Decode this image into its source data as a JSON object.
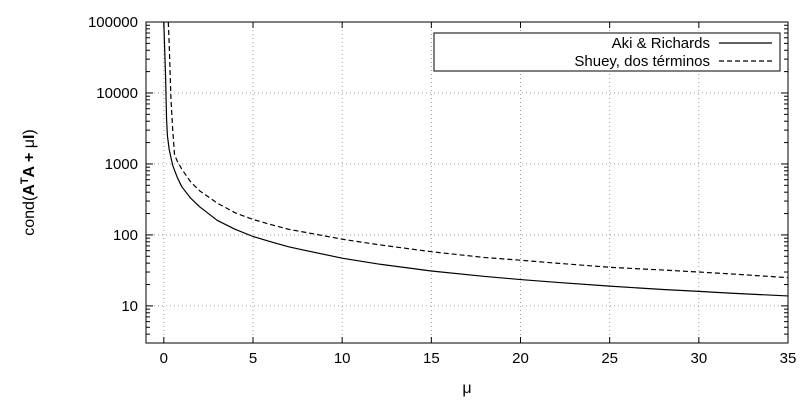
{
  "chart_data": {
    "type": "line",
    "title": "",
    "xlabel": "μ",
    "ylabel": {
      "prefix": "cond(",
      "a1": "A",
      "sup": "T",
      "a2": "A + ",
      "mu": "μ",
      "i": "I",
      "suffix": ")"
    },
    "xlim": [
      -1,
      35
    ],
    "ylim": [
      3,
      100000
    ],
    "yscale": "log",
    "grid": true,
    "legend_position": "top-right",
    "x_ticks": [
      0,
      5,
      10,
      15,
      20,
      25,
      30,
      35
    ],
    "x_tick_labels": [
      "0",
      "5",
      "10",
      "15",
      "20",
      "25",
      "30",
      "35"
    ],
    "y_ticks": [
      10,
      100,
      1000,
      10000,
      100000
    ],
    "y_tick_labels": [
      "10",
      "100",
      "1000",
      "10000",
      "100000"
    ],
    "series": [
      {
        "name": "Aki & Richards",
        "style": "solid",
        "color": "#000000",
        "x": [
          0.0,
          0.05,
          0.1,
          0.15,
          0.2,
          0.3,
          0.5,
          0.75,
          1,
          1.5,
          2,
          3,
          4,
          5,
          6,
          7,
          8,
          10,
          12,
          15,
          18,
          20,
          22,
          25,
          28,
          30,
          32,
          35
        ],
        "y": [
          100000,
          40000,
          16000,
          4500,
          2500,
          1600,
          950,
          650,
          480,
          330,
          250,
          160,
          120,
          95,
          80,
          68,
          60,
          47,
          39,
          31,
          26,
          23.5,
          21.5,
          19,
          17,
          16,
          15,
          13.8
        ]
      },
      {
        "name": "Shuey, dos términos",
        "style": "dashed",
        "color": "#000000",
        "x": [
          0.25,
          0.3,
          0.35,
          0.4,
          0.5,
          0.6,
          0.75,
          1,
          1.5,
          2,
          3,
          4,
          5,
          6,
          7,
          8,
          10,
          12,
          15,
          18,
          20,
          22,
          25,
          28,
          30,
          32,
          35
        ],
        "y": [
          100000,
          50000,
          20000,
          8000,
          3000,
          1350,
          1100,
          850,
          560,
          420,
          280,
          205,
          165,
          140,
          120,
          108,
          87,
          73,
          58,
          48,
          44,
          40,
          35,
          32,
          30,
          28,
          25
        ]
      }
    ]
  }
}
